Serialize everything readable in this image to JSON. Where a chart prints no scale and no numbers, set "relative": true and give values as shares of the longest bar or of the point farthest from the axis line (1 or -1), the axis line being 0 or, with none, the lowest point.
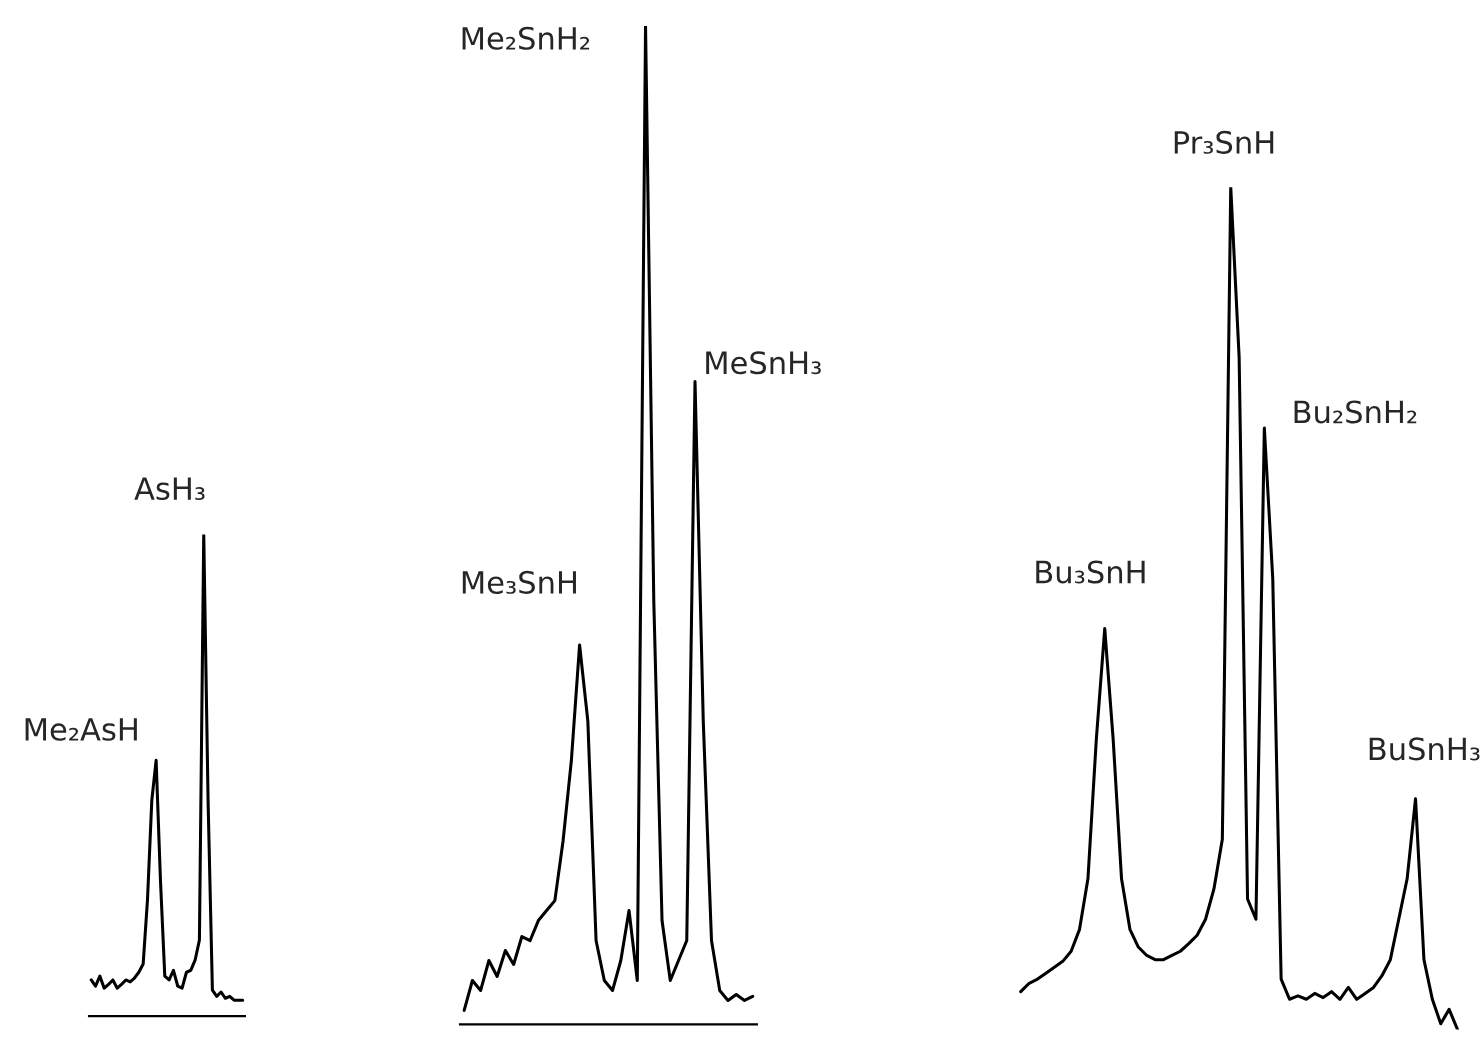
{
  "chart_data": [
    {
      "type": "line",
      "relative": true,
      "categories": [
        null,
        null,
        null,
        null,
        null,
        null,
        null,
        null,
        null,
        null,
        null,
        null,
        null,
        null,
        null,
        null,
        null,
        null,
        null,
        null,
        null,
        null,
        null,
        null,
        null,
        null,
        null,
        null,
        null,
        null,
        null,
        null,
        null,
        null,
        null,
        null
      ],
      "series": [
        {
          "color": "#000000",
          "values": [
            0.075,
            0.062,
            0.083,
            0.058,
            0.066,
            0.075,
            0.058,
            0.066,
            0.075,
            0.071,
            0.079,
            0.091,
            0.108,
            0.241,
            0.448,
            0.531,
            0.282,
            0.083,
            0.075,
            0.095,
            0.062,
            0.058,
            0.091,
            0.095,
            0.116,
            0.158,
            1,
            0.448,
            0.054,
            0.041,
            0.05,
            0.037,
            0.041,
            0.033,
            0.033,
            0.033
          ]
        }
      ],
      "annotations": [
        "Me₂AsH",
        "AsH₃"
      ]
    },
    {
      "type": "line",
      "relative": true,
      "categories": [
        null,
        null,
        null,
        null,
        null,
        null,
        null,
        null,
        null,
        null,
        null,
        null,
        null,
        null,
        null,
        null,
        null,
        null,
        null,
        null,
        null,
        null,
        null,
        null,
        null,
        null,
        null,
        null,
        null,
        null,
        null,
        null,
        null,
        null,
        null,
        null
      ],
      "series": [
        {
          "color": "#000000",
          "values": [
            0.014,
            0.044,
            0.034,
            0.064,
            0.048,
            0.074,
            0.06,
            0.088,
            0.084,
            0.104,
            0.114,
            0.124,
            0.184,
            0.264,
            0.38,
            0.304,
            0.084,
            0.044,
            0.034,
            0.064,
            0.114,
            0.044,
            1,
            0.424,
            0.104,
            0.044,
            0.064,
            0.084,
            0.644,
            0.304,
            0.084,
            0.034,
            0.024,
            0.03,
            0.024,
            0.028
          ]
        }
      ],
      "annotations": [
        "Me₃SnH",
        "Me₂SnH₂",
        "MeSnH₃"
      ]
    },
    {
      "type": "line",
      "relative": true,
      "categories": [
        null,
        null,
        null,
        null,
        null,
        null,
        null,
        null,
        null,
        null,
        null,
        null,
        null,
        null,
        null,
        null,
        null,
        null,
        null,
        null,
        null,
        null,
        null,
        null,
        null,
        null,
        null,
        null,
        null,
        null,
        null,
        null,
        null,
        null,
        null,
        null,
        null,
        null,
        null,
        null,
        null,
        null,
        null,
        null,
        null,
        null,
        null,
        null,
        null,
        null,
        null,
        null,
        null
      ],
      "series": [
        {
          "color": "#000000",
          "values": [
            0.045,
            0.055,
            0.06,
            0.067,
            0.074,
            0.081,
            0.093,
            0.119,
            0.179,
            0.345,
            0.476,
            0.345,
            0.179,
            0.119,
            0.098,
            0.088,
            0.083,
            0.083,
            0.088,
            0.093,
            0.102,
            0.112,
            0.131,
            0.167,
            0.226,
            1,
            0.798,
            0.155,
            0.131,
            0.714,
            0.536,
            0.06,
            0.036,
            0.04,
            0.036,
            0.043,
            0.038,
            0.045,
            0.036,
            0.05,
            0.036,
            0.043,
            0.05,
            0.064,
            0.083,
            0.131,
            0.179,
            0.274,
            0.083,
            0.036,
            0.007,
            0.024,
            0
          ]
        }
      ],
      "annotations": [
        "Bu₃SnH",
        "Pr₃SnH",
        "Bu₂SnH₂",
        "BuSnH₃"
      ]
    }
  ]
}
